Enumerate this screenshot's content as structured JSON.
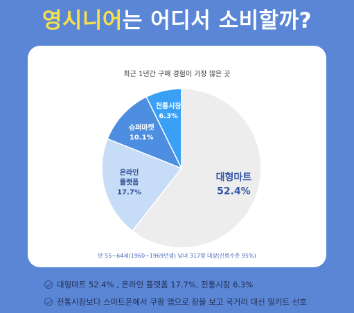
{
  "headline": {
    "highlight": "영시니어",
    "rest": "는 어디서 소비할까?"
  },
  "chart_data": {
    "type": "pie",
    "title": "최근 1년간 구매 경험이 가장 많은 곳",
    "slices": [
      {
        "label_lines": [
          "대형마트"
        ],
        "value": 52.4,
        "value_label": "52.4%",
        "color": "#ededed",
        "text_color": "#3355a8"
      },
      {
        "label_lines": [
          "온라인",
          "플랫폼"
        ],
        "value": 17.7,
        "value_label": "17.7%",
        "color": "#c7ddf7",
        "text_color": "#2f4f93"
      },
      {
        "label_lines": [
          "슈퍼마켓"
        ],
        "value": 10.1,
        "value_label": "10.1%",
        "color": "#4d8ee0",
        "text_color": "#ffffff"
      },
      {
        "label_lines": [
          "전통시장"
        ],
        "value": 6.3,
        "value_label": "6.3%",
        "color": "#3aa0f5",
        "text_color": "#ffffff"
      }
    ],
    "start_angle_deg": 0,
    "direction": "clockwise"
  },
  "footnote": "만 55~64세(1960~1969년생) 남녀 317명 대상(신뢰수준 95%)",
  "bullets": [
    "대형마트 52.4% , 온라인 플랫폼 17.7%, 전통시장 6.3%",
    "전통시장보다 스마트폰에서 쿠팡 앱으로 장을 보고 국거리 대신 밀키트 선호"
  ]
}
